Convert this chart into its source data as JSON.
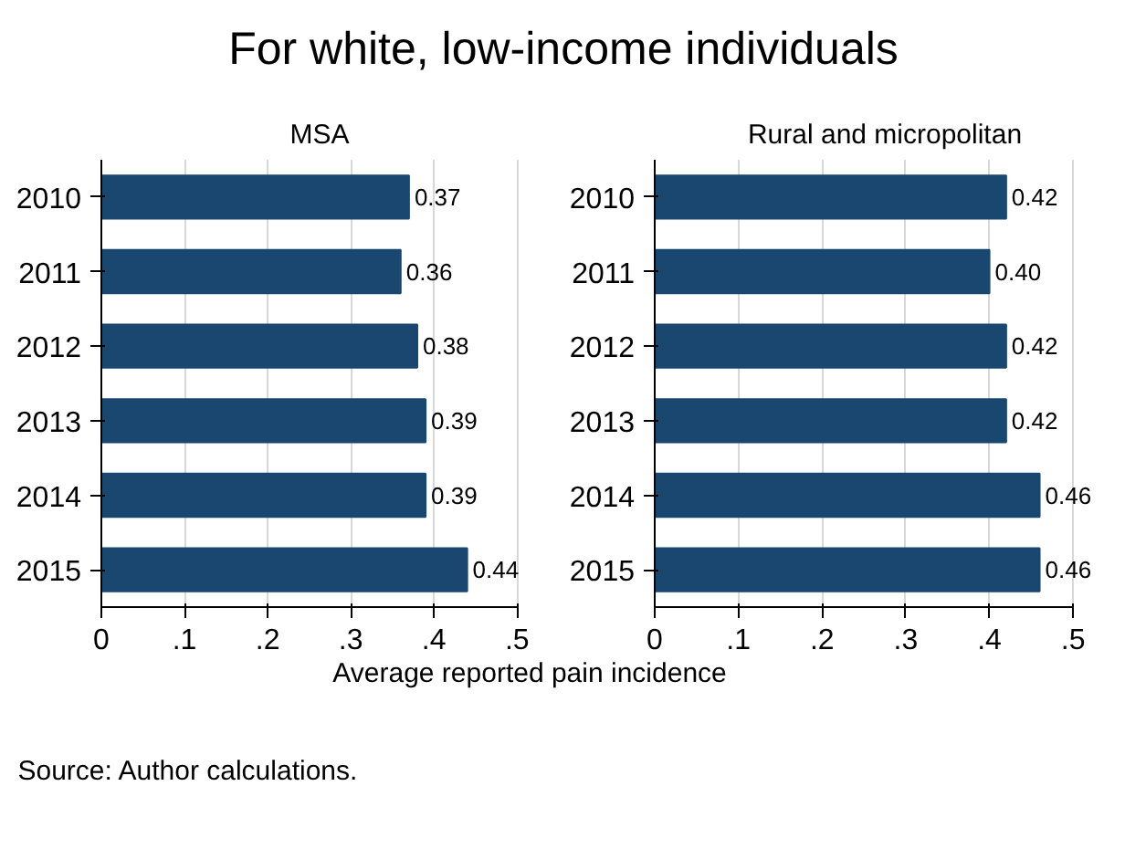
{
  "chart_data": [
    {
      "type": "bar",
      "orientation": "horizontal",
      "title": "For white, low-income individuals",
      "subtitle": "MSA",
      "xlabel": "Average reported pain incidence",
      "annotations": [
        "Source: Author calculations."
      ],
      "categories": [
        "2010",
        "2011",
        "2012",
        "2013",
        "2014",
        "2015"
      ],
      "values": [
        0.37,
        0.36,
        0.38,
        0.39,
        0.39,
        0.44
      ],
      "value_labels": [
        "0.37",
        "0.36",
        "0.38",
        "0.39",
        "0.39",
        "0.44"
      ],
      "color": "#1a476f",
      "xlim": [
        0,
        0.5
      ],
      "xticks": [
        0,
        {
          "value": 0.1,
          "label": ".1"
        },
        {
          "value": 0.2,
          "label": ".2"
        },
        {
          "value": 0.3,
          "label": ".3"
        },
        {
          "value": 0.4,
          "label": ".4"
        },
        {
          "value": 0.5,
          "label": ".5"
        }
      ],
      "grid": "x"
    },
    {
      "type": "bar",
      "orientation": "horizontal",
      "subtitle": "Rural and micropolitan",
      "categories": [
        "2010",
        "2011",
        "2012",
        "2013",
        "2014",
        "2015"
      ],
      "values": [
        0.42,
        0.4,
        0.42,
        0.42,
        0.46,
        0.46
      ],
      "value_labels": [
        "0.42",
        "0.40",
        "0.42",
        "0.42",
        "0.46",
        "0.46"
      ],
      "color": "#1a476f",
      "xlim": [
        0,
        0.5
      ],
      "xticks": [
        0,
        {
          "value": 0.1,
          "label": ".1"
        },
        {
          "value": 0.2,
          "label": ".2"
        },
        {
          "value": 0.3,
          "label": ".3"
        },
        {
          "value": 0.4,
          "label": ".4"
        },
        {
          "value": 0.5,
          "label": ".5"
        }
      ],
      "grid": "x"
    }
  ]
}
